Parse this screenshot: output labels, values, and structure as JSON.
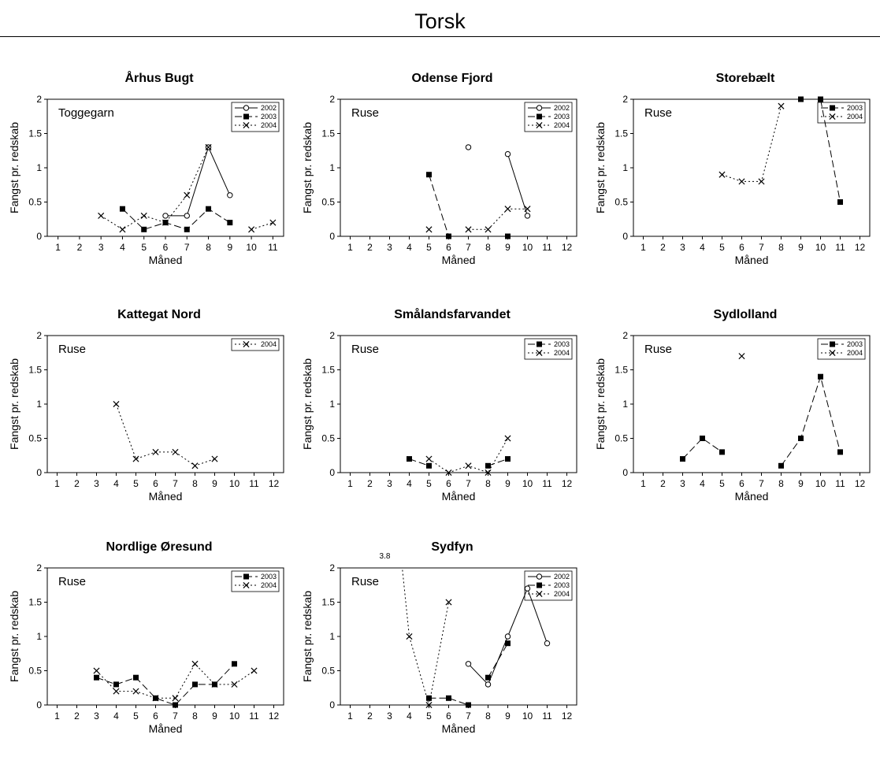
{
  "figure_title": "Torsk",
  "chart_data": [
    {
      "type": "line",
      "title": "Århus Bugt",
      "annotation": "Toggegarn",
      "xlabel": "Måned",
      "ylabel": "Fangst pr. redskab",
      "ylim": [
        0,
        2
      ],
      "yticks": [
        "0",
        "0.5",
        "1",
        "1.5",
        "2"
      ],
      "xticks": [
        "1",
        "2",
        "3",
        "4",
        "5",
        "6",
        "7",
        "8",
        "9",
        "10",
        "11"
      ],
      "xmax": 11,
      "legend": [
        "2002",
        "2003",
        "2004"
      ],
      "series": [
        {
          "name": "2002",
          "segments": [
            [
              [
                6,
                0.3
              ],
              [
                7,
                0.3
              ],
              [
                8,
                1.3
              ],
              [
                9,
                0.6
              ]
            ]
          ]
        },
        {
          "name": "2003",
          "segments": [
            [
              [
                4,
                0.4
              ],
              [
                5,
                0.1
              ],
              [
                6,
                0.2
              ],
              [
                7,
                0.1
              ],
              [
                8,
                0.4
              ],
              [
                9,
                0.2
              ]
            ]
          ]
        },
        {
          "name": "2004",
          "segments": [
            [
              [
                3,
                0.3
              ],
              [
                4,
                0.1
              ],
              [
                5,
                0.3
              ],
              [
                6,
                0.2
              ],
              [
                7,
                0.6
              ],
              [
                8,
                1.3
              ]
            ],
            [
              [
                10,
                0.1
              ],
              [
                11,
                0.2
              ]
            ]
          ]
        }
      ]
    },
    {
      "type": "line",
      "title": "Odense Fjord",
      "annotation": "Ruse",
      "xlabel": "Måned",
      "ylabel": "Fangst pr. redskab",
      "ylim": [
        0,
        2
      ],
      "yticks": [
        "0",
        "0.5",
        "1",
        "1.5",
        "2"
      ],
      "xticks": [
        "1",
        "2",
        "3",
        "4",
        "5",
        "6",
        "7",
        "8",
        "9",
        "10",
        "11",
        "12"
      ],
      "xmax": 12,
      "legend": [
        "2002",
        "2003",
        "2004"
      ],
      "series": [
        {
          "name": "2002",
          "segments": [
            [
              [
                7,
                1.3
              ]
            ],
            [
              [
                9,
                1.2
              ],
              [
                10,
                0.3
              ]
            ]
          ]
        },
        {
          "name": "2003",
          "segments": [
            [
              [
                5,
                0.9
              ],
              [
                6,
                0.0
              ]
            ],
            [
              [
                9,
                0.0
              ]
            ]
          ]
        },
        {
          "name": "2004",
          "segments": [
            [
              [
                5,
                0.1
              ]
            ],
            [
              [
                7,
                0.1
              ],
              [
                8,
                0.1
              ],
              [
                9,
                0.4
              ],
              [
                10,
                0.4
              ]
            ]
          ]
        }
      ]
    },
    {
      "type": "line",
      "title": "Storebælt",
      "annotation": "Ruse",
      "xlabel": "Måned",
      "ylabel": "Fangst pr. redskab",
      "ylim": [
        0,
        2
      ],
      "yticks": [
        "0",
        "0.5",
        "1",
        "1.5",
        "2"
      ],
      "xticks": [
        "1",
        "2",
        "3",
        "4",
        "5",
        "6",
        "7",
        "8",
        "9",
        "10",
        "11",
        "12"
      ],
      "xmax": 12,
      "legend": [
        "2003",
        "2004"
      ],
      "series": [
        {
          "name": "2003",
          "segments": [
            [
              [
                9,
                2.0
              ],
              [
                10,
                2.0
              ],
              [
                11,
                0.5
              ]
            ]
          ]
        },
        {
          "name": "2004",
          "segments": [
            [
              [
                5,
                0.9
              ],
              [
                6,
                0.8
              ],
              [
                7,
                0.8
              ],
              [
                8,
                1.9
              ]
            ]
          ]
        }
      ]
    },
    {
      "type": "line",
      "title": "Kattegat Nord",
      "annotation": "Ruse",
      "xlabel": "Måned",
      "ylabel": "Fangst pr. redskab",
      "ylim": [
        0,
        2
      ],
      "yticks": [
        "0",
        "0.5",
        "1",
        "1.5",
        "2"
      ],
      "xticks": [
        "1",
        "2",
        "3",
        "4",
        "5",
        "6",
        "7",
        "8",
        "9",
        "10",
        "11",
        "12"
      ],
      "xmax": 12,
      "legend": [
        "2004"
      ],
      "series": [
        {
          "name": "2004",
          "segments": [
            [
              [
                4,
                1.0
              ],
              [
                5,
                0.2
              ],
              [
                6,
                0.3
              ],
              [
                7,
                0.3
              ],
              [
                8,
                0.1
              ],
              [
                9,
                0.2
              ]
            ]
          ]
        }
      ]
    },
    {
      "type": "line",
      "title": "Smålandsfarvandet",
      "annotation": "Ruse",
      "xlabel": "Måned",
      "ylabel": "Fangst pr. redskab",
      "ylim": [
        0,
        2
      ],
      "yticks": [
        "0",
        "0.5",
        "1",
        "1.5",
        "2"
      ],
      "xticks": [
        "1",
        "2",
        "3",
        "4",
        "5",
        "6",
        "7",
        "8",
        "9",
        "10",
        "11",
        "12"
      ],
      "xmax": 12,
      "legend": [
        "2003",
        "2004"
      ],
      "series": [
        {
          "name": "2003",
          "segments": [
            [
              [
                4,
                0.2
              ],
              [
                5,
                0.1
              ]
            ],
            [
              [
                8,
                0.1
              ],
              [
                9,
                0.2
              ]
            ]
          ]
        },
        {
          "name": "2004",
          "segments": [
            [
              [
                5,
                0.2
              ],
              [
                6,
                0.0
              ],
              [
                7,
                0.1
              ],
              [
                8,
                0.0
              ],
              [
                9,
                0.5
              ]
            ]
          ]
        }
      ]
    },
    {
      "type": "line",
      "title": "Sydlolland",
      "annotation": "Ruse",
      "xlabel": "Måned",
      "ylabel": "Fangst pr. redskab",
      "ylim": [
        0,
        2
      ],
      "yticks": [
        "0",
        "0.5",
        "1",
        "1.5",
        "2"
      ],
      "xticks": [
        "1",
        "2",
        "3",
        "4",
        "5",
        "6",
        "7",
        "8",
        "9",
        "10",
        "11",
        "12"
      ],
      "xmax": 12,
      "legend": [
        "2003",
        "2004"
      ],
      "series": [
        {
          "name": "2003",
          "segments": [
            [
              [
                3,
                0.2
              ],
              [
                4,
                0.5
              ],
              [
                5,
                0.3
              ]
            ],
            [
              [
                8,
                0.1
              ],
              [
                9,
                0.5
              ],
              [
                10,
                1.4
              ],
              [
                11,
                0.3
              ]
            ]
          ]
        },
        {
          "name": "2004",
          "segments": [
            [
              [
                6,
                1.7
              ]
            ]
          ]
        }
      ]
    },
    {
      "type": "line",
      "title": "Nordlige Øresund",
      "annotation": "Ruse",
      "xlabel": "Måned",
      "ylabel": "Fangst pr. redskab",
      "ylim": [
        0,
        2
      ],
      "yticks": [
        "0",
        "0.5",
        "1",
        "1.5",
        "2"
      ],
      "xticks": [
        "1",
        "2",
        "3",
        "4",
        "5",
        "6",
        "7",
        "8",
        "9",
        "10",
        "11",
        "12"
      ],
      "xmax": 12,
      "legend": [
        "2003",
        "2004"
      ],
      "series": [
        {
          "name": "2003",
          "segments": [
            [
              [
                3,
                0.4
              ],
              [
                4,
                0.3
              ],
              [
                5,
                0.4
              ],
              [
                6,
                0.1
              ],
              [
                7,
                0.0
              ],
              [
                8,
                0.3
              ],
              [
                9,
                0.3
              ],
              [
                10,
                0.6
              ]
            ]
          ]
        },
        {
          "name": "2004",
          "segments": [
            [
              [
                3,
                0.5
              ],
              [
                4,
                0.2
              ],
              [
                5,
                0.2
              ],
              [
                6,
                0.1
              ],
              [
                7,
                0.1
              ],
              [
                8,
                0.6
              ],
              [
                9,
                0.3
              ],
              [
                10,
                0.3
              ],
              [
                11,
                0.5
              ]
            ]
          ]
        }
      ]
    },
    {
      "type": "line",
      "title": "Sydfyn",
      "annotation": "Ruse",
      "xlabel": "Måned",
      "ylabel": "Fangst pr. redskab",
      "ylim": [
        0,
        2
      ],
      "yticks": [
        "0",
        "0.5",
        "1",
        "1.5",
        "2"
      ],
      "xticks": [
        "1",
        "2",
        "3",
        "4",
        "5",
        "6",
        "7",
        "8",
        "9",
        "10",
        "11",
        "12"
      ],
      "xmax": 12,
      "legend": [
        "2002",
        "2003",
        "2004"
      ],
      "clipped_value": {
        "x": 3,
        "y": 3.8,
        "label": "3.8"
      },
      "series": [
        {
          "name": "2002",
          "segments": [
            [
              [
                7,
                0.6
              ],
              [
                8,
                0.3
              ],
              [
                9,
                1.0
              ],
              [
                10,
                1.7
              ],
              [
                11,
                0.9
              ]
            ]
          ]
        },
        {
          "name": "2003",
          "segments": [
            [
              [
                5,
                0.1
              ],
              [
                6,
                0.1
              ],
              [
                7,
                0.0
              ]
            ],
            [
              [
                8,
                0.4
              ],
              [
                9,
                0.9
              ]
            ]
          ]
        },
        {
          "name": "2004",
          "segments": [
            [
              [
                3,
                3.8
              ],
              [
                4,
                1.0
              ],
              [
                5,
                0.0
              ],
              [
                6,
                1.5
              ]
            ]
          ]
        }
      ]
    }
  ]
}
